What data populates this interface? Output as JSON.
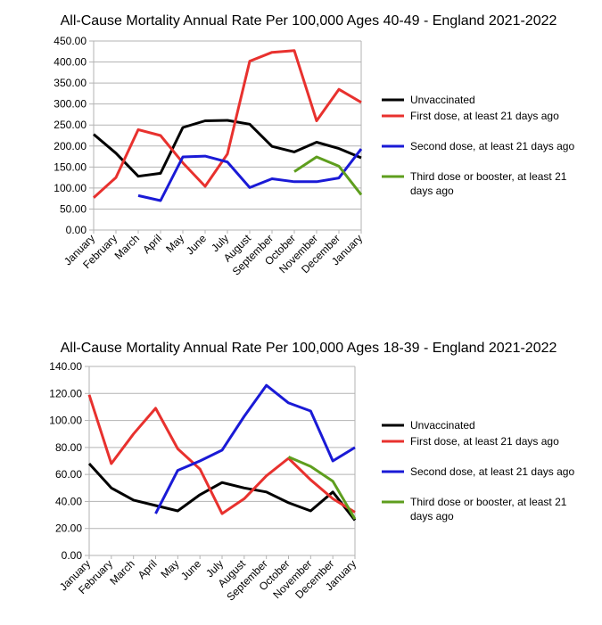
{
  "chart_data": [
    {
      "type": "line",
      "title": "All-Cause Mortality Annual Rate Per 100,000 Ages 40-49 - England 2021-2022",
      "categories": [
        "January",
        "February",
        "March",
        "April",
        "May",
        "June",
        "July",
        "August",
        "September",
        "October",
        "November",
        "December",
        "January"
      ],
      "ylim": [
        0,
        450
      ],
      "ytick_step": 50,
      "ytick_labels": [
        "0.00",
        "50.00",
        "100.00",
        "150.00",
        "200.00",
        "250.00",
        "300.00",
        "350.00",
        "400.00",
        "450.00"
      ],
      "grid": true,
      "legend_position": "right",
      "series": [
        {
          "name": "Unvaccinated",
          "color": "#000000",
          "values": [
            228,
            183,
            128,
            135,
            244,
            260,
            261,
            252,
            199,
            186,
            209,
            194,
            172
          ]
        },
        {
          "name": "First dose, at least 21 days ago",
          "color": "#e8312e",
          "values": [
            77,
            125,
            239,
            225,
            160,
            104,
            181,
            402,
            423,
            427,
            260,
            335,
            304
          ]
        },
        {
          "name": "Second dose, at least 21 days ago",
          "color": "#1a1ad6",
          "values": [
            null,
            null,
            82,
            70,
            174,
            176,
            162,
            101,
            122,
            115,
            115,
            124,
            193
          ]
        },
        {
          "name": "Third dose or booster, at least 21 days ago",
          "color": "#5e9e1e",
          "values": [
            null,
            null,
            null,
            null,
            null,
            null,
            null,
            null,
            null,
            139,
            174,
            152,
            84
          ]
        }
      ]
    },
    {
      "type": "line",
      "title": "All-Cause Mortality Annual Rate Per 100,000 Ages 18-39 - England 2021-2022",
      "categories": [
        "January",
        "February",
        "March",
        "April",
        "May",
        "June",
        "July",
        "August",
        "September",
        "October",
        "November",
        "December",
        "January"
      ],
      "ylim": [
        0,
        140
      ],
      "ytick_step": 20,
      "ytick_labels": [
        "0.00",
        "20.00",
        "40.00",
        "60.00",
        "80.00",
        "100.00",
        "120.00",
        "140.00"
      ],
      "grid": true,
      "legend_position": "right",
      "series": [
        {
          "name": "Unvaccinated",
          "color": "#000000",
          "values": [
            68,
            50,
            41,
            37,
            33,
            45,
            54,
            50,
            47,
            39,
            33,
            47,
            26
          ]
        },
        {
          "name": "First dose, at least 21 days ago",
          "color": "#e8312e",
          "values": [
            119,
            68,
            90,
            109,
            79,
            64,
            31,
            42,
            59,
            72,
            56,
            42,
            32
          ]
        },
        {
          "name": "Second dose, at least 21 days ago",
          "color": "#1a1ad6",
          "values": [
            null,
            null,
            null,
            31,
            63,
            70,
            78,
            103,
            126,
            113,
            107,
            70,
            80
          ]
        },
        {
          "name": "Third dose or booster, at least 21 days ago",
          "color": "#5e9e1e",
          "values": [
            null,
            null,
            null,
            null,
            null,
            null,
            null,
            null,
            null,
            73,
            66,
            55,
            27
          ]
        }
      ]
    }
  ]
}
